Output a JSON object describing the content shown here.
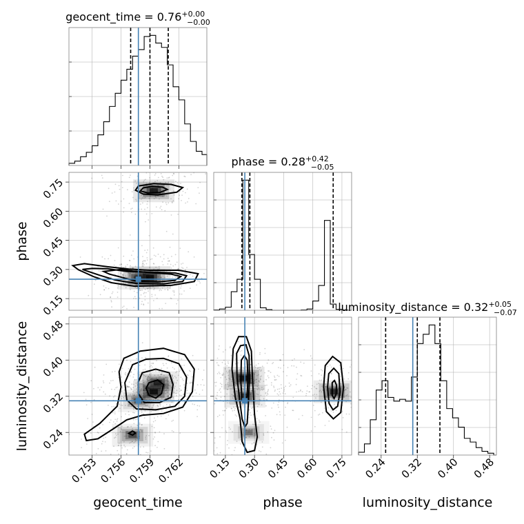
{
  "chart_data": {
    "type": "corner",
    "parameters": [
      {
        "key": "geocent_time",
        "label": "geocent_time",
        "title": "geocent_time = 0.76",
        "title_plus": "+0.00",
        "title_minus": "−0.00",
        "range": [
          0.7506,
          0.7649
        ],
        "ticks": [
          0.753,
          0.756,
          0.759,
          0.762
        ],
        "tick_labels": [
          "0.753",
          "0.756",
          "0.759",
          "0.762"
        ],
        "quantiles": [
          0.757,
          0.759,
          0.7609
        ],
        "truth": 0.7578
      },
      {
        "key": "phase",
        "label": "phase",
        "title": "phase = 0.28",
        "title_plus": "+0.42",
        "title_minus": "−0.05",
        "range": [
          0.09,
          0.8
        ],
        "ticks": [
          0.15,
          0.3,
          0.45,
          0.6,
          0.75
        ],
        "tick_labels": [
          "0.15",
          "0.30",
          "0.45",
          "0.60",
          "0.75"
        ],
        "quantiles": [
          0.235,
          0.276,
          0.705
        ],
        "truth": 0.25
      },
      {
        "key": "luminosity_distance",
        "label": "luminosity_distance",
        "title": "luminosity_distance = 0.32",
        "title_plus": "+0.05",
        "title_minus": "−0.07",
        "range": [
          0.19,
          0.495
        ],
        "ticks": [
          0.24,
          0.32,
          0.4,
          0.48
        ],
        "tick_labels": [
          "0.24",
          "0.32",
          "0.40",
          "0.48"
        ],
        "quantiles": [
          0.25,
          0.32,
          0.37
        ],
        "truth": 0.31
      }
    ],
    "histograms": [
      {
        "param": "geocent_time",
        "bin_edges": [
          0.7506,
          0.7512,
          0.7518,
          0.7524,
          0.753,
          0.7536,
          0.7542,
          0.7548,
          0.7554,
          0.756,
          0.7566,
          0.7572,
          0.7578,
          0.7584,
          0.759,
          0.7596,
          0.7602,
          0.7608,
          0.7614,
          0.762,
          0.7626,
          0.7632,
          0.7638,
          0.7644,
          0.7649
        ],
        "counts": [
          2,
          4,
          8,
          12,
          18,
          28,
          40,
          54,
          66,
          78,
          88,
          100,
          106,
          118,
          119,
          112,
          108,
          92,
          72,
          60,
          38,
          22,
          13,
          10
        ]
      },
      {
        "param": "phase",
        "bin_edges": [
          0.09,
          0.12,
          0.15,
          0.18,
          0.21,
          0.24,
          0.27,
          0.3,
          0.33,
          0.36,
          0.39,
          0.42,
          0.45,
          0.48,
          0.51,
          0.54,
          0.57,
          0.6,
          0.63,
          0.66,
          0.69,
          0.72,
          0.75,
          0.78,
          0.8
        ],
        "counts": [
          1,
          4,
          10,
          60,
          100,
          420,
          180,
          100,
          8,
          2,
          0,
          0,
          0,
          0,
          0,
          1,
          4,
          30,
          80,
          290,
          20,
          3,
          1,
          0
        ]
      },
      {
        "param": "luminosity_distance",
        "bin_edges": [
          0.19,
          0.203,
          0.216,
          0.229,
          0.242,
          0.255,
          0.268,
          0.281,
          0.294,
          0.307,
          0.32,
          0.333,
          0.346,
          0.359,
          0.372,
          0.385,
          0.398,
          0.411,
          0.424,
          0.437,
          0.45,
          0.463,
          0.476,
          0.489,
          0.495
        ],
        "counts": [
          3,
          12,
          38,
          70,
          80,
          62,
          58,
          60,
          58,
          84,
          120,
          130,
          140,
          120,
          80,
          50,
          40,
          30,
          18,
          14,
          8,
          4,
          2,
          0
        ]
      }
    ],
    "pairs": [
      {
        "x": "geocent_time",
        "y": "phase",
        "density": [
          {
            "x": 0.7594,
            "y": 0.705,
            "peak": 0.9
          },
          {
            "x": 0.759,
            "y": 0.258,
            "peak": 1.0
          },
          {
            "x": 0.7578,
            "y": 0.255,
            "peak": 0.7
          }
        ],
        "contours": [
          [
            [
              0.7583,
              0.72
            ],
            [
              0.7592,
              0.728
            ],
            [
              0.7603,
              0.724
            ],
            [
              0.7608,
              0.712
            ],
            [
              0.76,
              0.696
            ],
            [
              0.7588,
              0.694
            ],
            [
              0.758,
              0.704
            ]
          ],
          [
            [
              0.7578,
              0.73
            ],
            [
              0.7594,
              0.742
            ],
            [
              0.7612,
              0.738
            ],
            [
              0.7624,
              0.722
            ],
            [
              0.7618,
              0.698
            ],
            [
              0.7598,
              0.684
            ],
            [
              0.7583,
              0.688
            ],
            [
              0.7575,
              0.708
            ]
          ],
          [
            [
              0.756,
              0.3
            ],
            [
              0.7572,
              0.292
            ],
            [
              0.759,
              0.284
            ],
            [
              0.7612,
              0.276
            ],
            [
              0.7622,
              0.264
            ],
            [
              0.7616,
              0.244
            ],
            [
              0.7598,
              0.236
            ],
            [
              0.7576,
              0.24
            ],
            [
              0.7562,
              0.258
            ],
            [
              0.7548,
              0.276
            ],
            [
              0.7542,
              0.29
            ]
          ],
          [
            [
              0.753,
              0.306
            ],
            [
              0.7546,
              0.304
            ],
            [
              0.7566,
              0.29
            ],
            [
              0.7588,
              0.286
            ],
            [
              0.7616,
              0.282
            ],
            [
              0.7628,
              0.268
            ],
            [
              0.7624,
              0.238
            ],
            [
              0.7604,
              0.226
            ],
            [
              0.7576,
              0.228
            ],
            [
              0.7554,
              0.246
            ],
            [
              0.7538,
              0.27
            ],
            [
              0.7526,
              0.29
            ],
            [
              0.752,
              0.3
            ]
          ],
          [
            [
              0.7522,
              0.33
            ],
            [
              0.7546,
              0.314
            ],
            [
              0.7568,
              0.302
            ],
            [
              0.759,
              0.296
            ],
            [
              0.762,
              0.296
            ],
            [
              0.764,
              0.278
            ],
            [
              0.7636,
              0.238
            ],
            [
              0.7612,
              0.218
            ],
            [
              0.7574,
              0.214
            ],
            [
              0.755,
              0.232
            ],
            [
              0.7532,
              0.262
            ],
            [
              0.7516,
              0.298
            ],
            [
              0.751,
              0.32
            ]
          ]
        ],
        "truth": [
          0.7578,
          0.25
        ]
      },
      {
        "x": "geocent_time",
        "y": "luminosity_distance",
        "density": [
          {
            "x": 0.7594,
            "y": 0.33,
            "peak": 1.0
          },
          {
            "x": 0.7598,
            "y": 0.35,
            "peak": 0.8
          },
          {
            "x": 0.7572,
            "y": 0.234,
            "peak": 0.6
          },
          {
            "x": 0.7578,
            "y": 0.31,
            "peak": 0.5
          }
        ],
        "contours": [
          [
            [
              0.7589,
              0.35
            ],
            [
              0.7598,
              0.356
            ],
            [
              0.7604,
              0.346
            ],
            [
              0.7602,
              0.326
            ],
            [
              0.7596,
              0.316
            ],
            [
              0.7589,
              0.322
            ],
            [
              0.7586,
              0.338
            ]
          ],
          [
            [
              0.7582,
              0.372
            ],
            [
              0.7596,
              0.38
            ],
            [
              0.761,
              0.372
            ],
            [
              0.7614,
              0.346
            ],
            [
              0.7612,
              0.318
            ],
            [
              0.76,
              0.306
            ],
            [
              0.7584,
              0.306
            ],
            [
              0.7578,
              0.326
            ],
            [
              0.7578,
              0.352
            ]
          ],
          [
            [
              0.7572,
              0.39
            ],
            [
              0.7586,
              0.402
            ],
            [
              0.7604,
              0.404
            ],
            [
              0.762,
              0.392
            ],
            [
              0.7628,
              0.362
            ],
            [
              0.7626,
              0.32
            ],
            [
              0.7616,
              0.298
            ],
            [
              0.7596,
              0.29
            ],
            [
              0.7576,
              0.292
            ],
            [
              0.7566,
              0.312
            ],
            [
              0.7564,
              0.35
            ]
          ],
          [
            [
              0.7563,
              0.404
            ],
            [
              0.758,
              0.42
            ],
            [
              0.7604,
              0.426
            ],
            [
              0.7626,
              0.412
            ],
            [
              0.7636,
              0.38
            ],
            [
              0.7634,
              0.33
            ],
            [
              0.7624,
              0.296
            ],
            [
              0.7604,
              0.282
            ],
            [
              0.7582,
              0.278
            ],
            [
              0.7566,
              0.268
            ],
            [
              0.7552,
              0.248
            ],
            [
              0.7536,
              0.226
            ],
            [
              0.7524,
              0.222
            ],
            [
              0.7522,
              0.236
            ],
            [
              0.7538,
              0.26
            ],
            [
              0.7556,
              0.298
            ],
            [
              0.756,
              0.34
            ],
            [
              0.7558,
              0.374
            ]
          ],
          [
            [
              0.7568,
              0.238
            ],
            [
              0.7572,
              0.243
            ],
            [
              0.7575,
              0.239
            ],
            [
              0.7572,
              0.234
            ]
          ]
        ],
        "truth": [
          0.7578,
          0.31
        ]
      },
      {
        "x": "phase",
        "y": "luminosity_distance",
        "density": [
          {
            "x": 0.245,
            "y": 0.36,
            "peak": 1.0
          },
          {
            "x": 0.25,
            "y": 0.32,
            "peak": 0.7
          },
          {
            "x": 0.27,
            "y": 0.24,
            "peak": 0.4
          },
          {
            "x": 0.71,
            "y": 0.33,
            "peak": 0.8
          }
        ],
        "contours": [
          [
            [
              0.232,
              0.4
            ],
            [
              0.248,
              0.41
            ],
            [
              0.262,
              0.4
            ],
            [
              0.266,
              0.36
            ],
            [
              0.262,
              0.32
            ],
            [
              0.25,
              0.305
            ],
            [
              0.236,
              0.312
            ],
            [
              0.23,
              0.35
            ]
          ],
          [
            [
              0.208,
              0.415
            ],
            [
              0.228,
              0.432
            ],
            [
              0.256,
              0.434
            ],
            [
              0.272,
              0.41
            ],
            [
              0.274,
              0.356
            ],
            [
              0.268,
              0.3
            ],
            [
              0.262,
              0.26
            ],
            [
              0.25,
              0.252
            ],
            [
              0.236,
              0.27
            ],
            [
              0.224,
              0.312
            ],
            [
              0.21,
              0.36
            ]
          ],
          [
            [
              0.19,
              0.425
            ],
            [
              0.218,
              0.452
            ],
            [
              0.258,
              0.452
            ],
            [
              0.284,
              0.42
            ],
            [
              0.29,
              0.356
            ],
            [
              0.3,
              0.28
            ],
            [
              0.314,
              0.23
            ],
            [
              0.3,
              0.2
            ],
            [
              0.262,
              0.196
            ],
            [
              0.236,
              0.22
            ],
            [
              0.226,
              0.27
            ],
            [
              0.2,
              0.32
            ],
            [
              0.184,
              0.38
            ]
          ],
          [
            [
              0.7,
              0.35
            ],
            [
              0.712,
              0.355
            ],
            [
              0.722,
              0.345
            ],
            [
              0.72,
              0.325
            ],
            [
              0.71,
              0.315
            ],
            [
              0.7,
              0.322
            ]
          ],
          [
            [
              0.682,
              0.37
            ],
            [
              0.708,
              0.382
            ],
            [
              0.734,
              0.37
            ],
            [
              0.74,
              0.33
            ],
            [
              0.728,
              0.298
            ],
            [
              0.704,
              0.29
            ],
            [
              0.684,
              0.304
            ],
            [
              0.676,
              0.34
            ]
          ],
          [
            [
              0.664,
              0.388
            ],
            [
              0.702,
              0.408
            ],
            [
              0.744,
              0.394
            ],
            [
              0.758,
              0.34
            ],
            [
              0.744,
              0.284
            ],
            [
              0.706,
              0.27
            ],
            [
              0.67,
              0.286
            ],
            [
              0.656,
              0.34
            ]
          ]
        ],
        "truth": [
          0.25,
          0.31
        ]
      }
    ],
    "grid": true,
    "truth_color": "#4682b4",
    "hist_color": "#000000",
    "contour_color": "#000000"
  }
}
